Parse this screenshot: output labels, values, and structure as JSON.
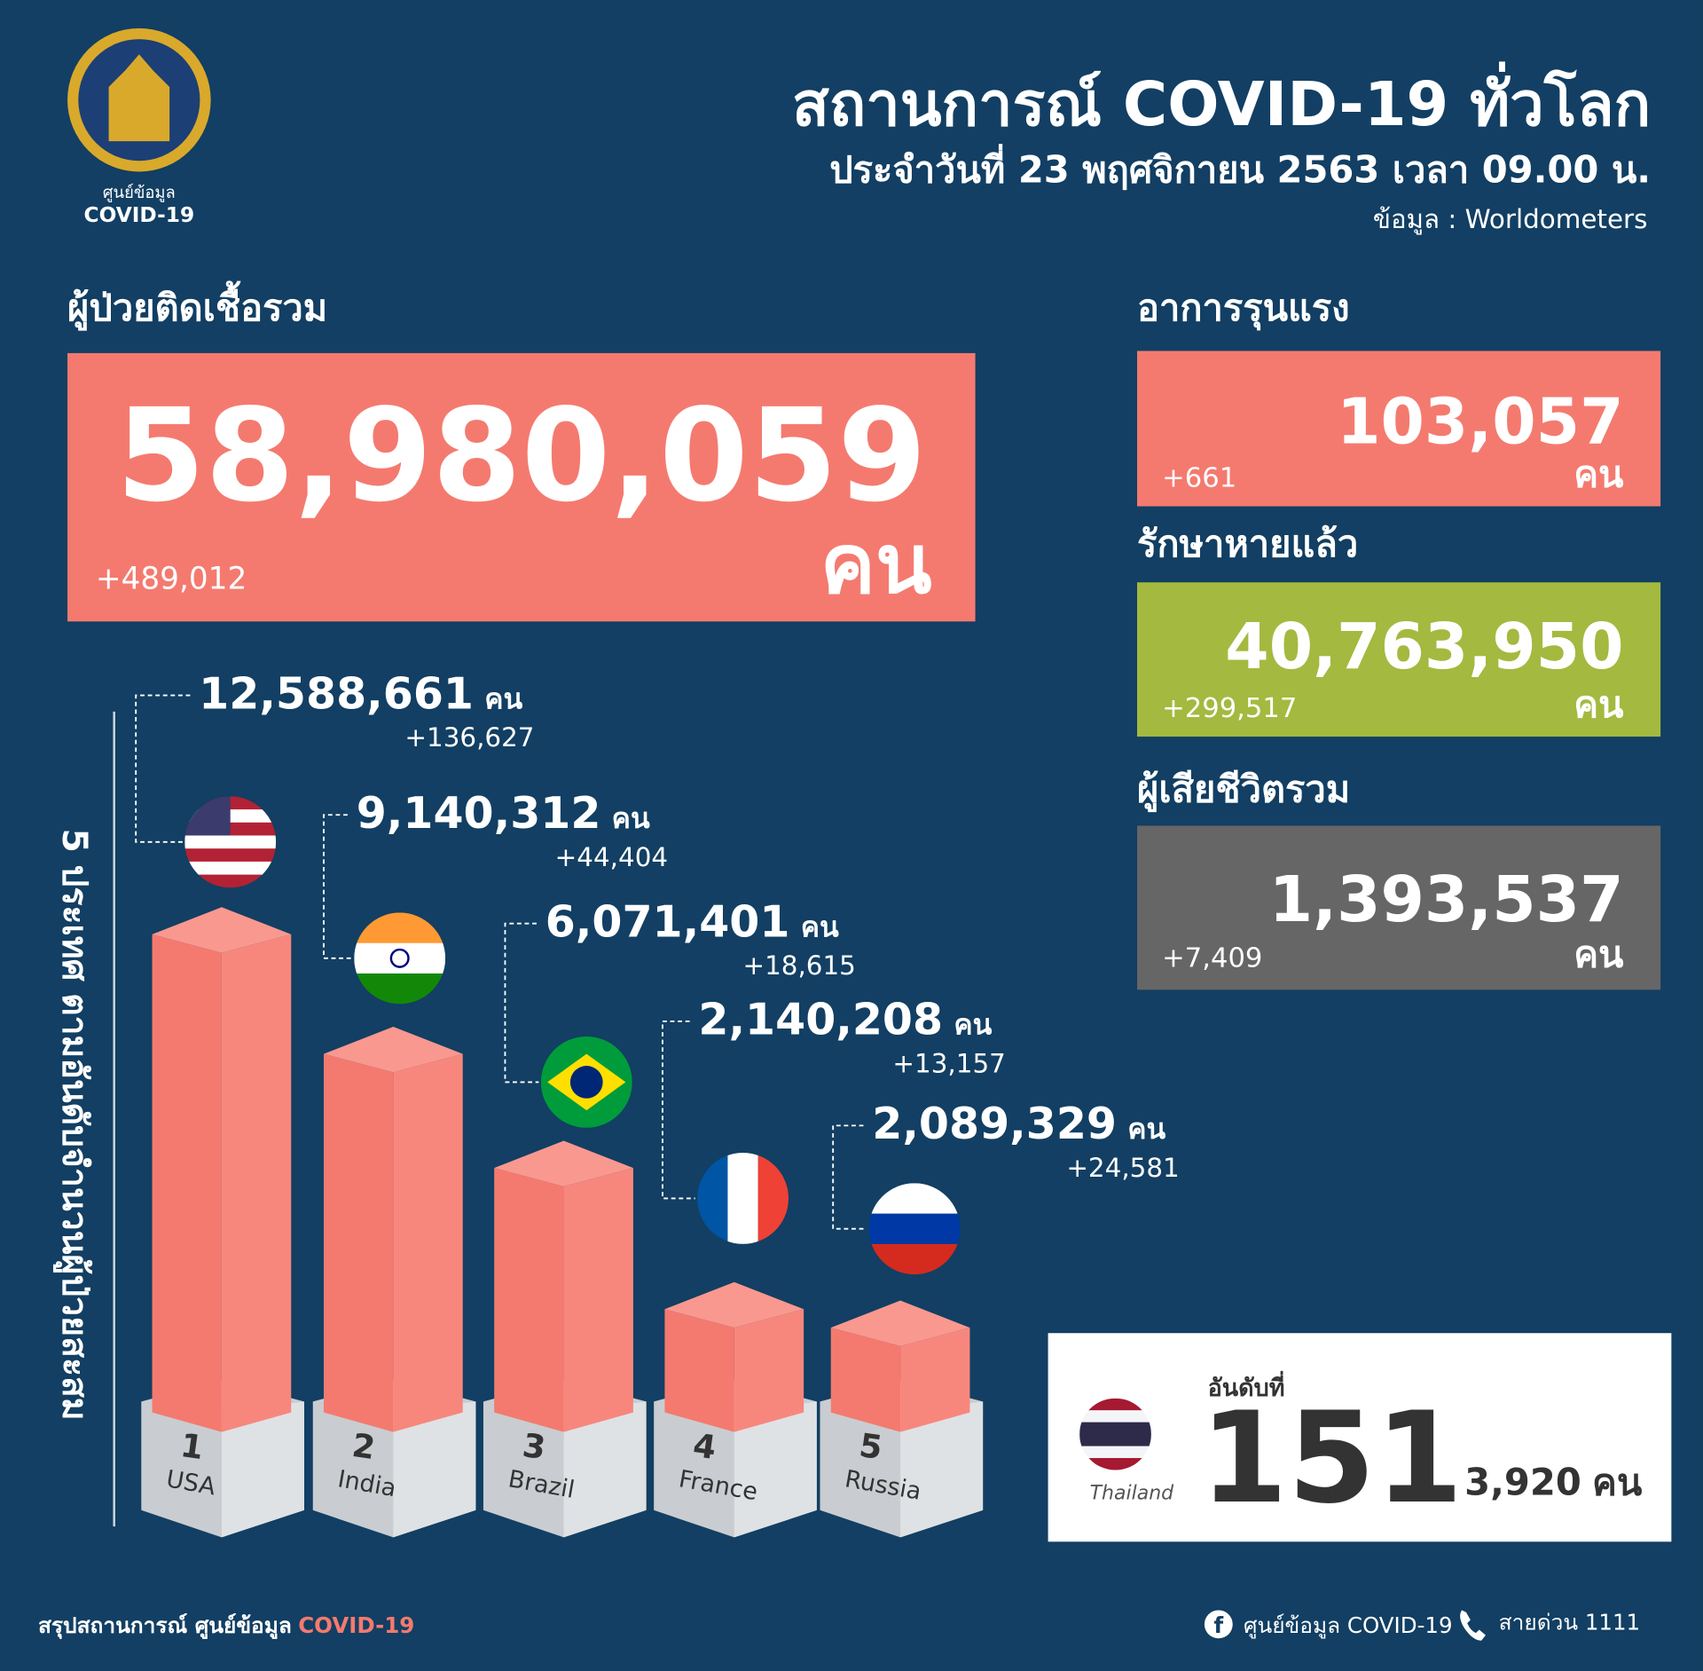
{
  "header": {
    "title": "สถานการณ์ COVID-19 ทั่วโลก",
    "subtitle": "ประจำวันที่ 23 พฤศจิกายน 2563 เวลา 09.00 น.",
    "source": "ข้อมูล : Worldometers",
    "logo_lines": [
      "ศูนย์ข้อมูล",
      "COVID-19"
    ]
  },
  "total": {
    "label": "ผู้ป่วยติดเชื้อรวม",
    "value": "58,980,059",
    "unit": "คน",
    "change": "+489,012"
  },
  "stats": [
    {
      "label": "อาการรุนแรง",
      "value": "103,057",
      "unit": "คน",
      "change": "+661"
    },
    {
      "label": "รักษาหายแล้ว",
      "value": "40,763,950",
      "unit": "คน",
      "change": "+299,517"
    },
    {
      "label": "ผู้เสียชีวิตรวม",
      "value": "1,393,537",
      "unit": "คน",
      "change": "+7,409"
    }
  ],
  "ranking": {
    "label": "5 ประเทศ ตามอันดับจำนวนผู้ป่วยสะสม",
    "countries": [
      {
        "rank": "1",
        "name": "USA",
        "value": "12,588,661",
        "unit": "คน",
        "change": "+136,627"
      },
      {
        "rank": "2",
        "name": "India",
        "value": "9,140,312",
        "unit": "คน",
        "change": "+44,404"
      },
      {
        "rank": "3",
        "name": "Brazil",
        "value": "6,071,401",
        "unit": "คน",
        "change": "+18,615"
      },
      {
        "rank": "4",
        "name": "France",
        "value": "2,140,208",
        "unit": "คน",
        "change": "+13,157"
      },
      {
        "rank": "5",
        "name": "Russia",
        "value": "2,089,329",
        "unit": "คน",
        "change": "+24,581"
      }
    ]
  },
  "thailand": {
    "name": "Thailand",
    "rank_label": "อันดับที่",
    "rank": "151",
    "value": "3,920",
    "unit": "คน"
  },
  "footer": {
    "summary": "สรุปสถานการณ์ ศูนย์ข้อมูล",
    "summary_highlight": "COVID-19",
    "facebook": "ศูนย์ข้อมูล COVID-19",
    "hotline": "สายด่วน 1111"
  }
}
